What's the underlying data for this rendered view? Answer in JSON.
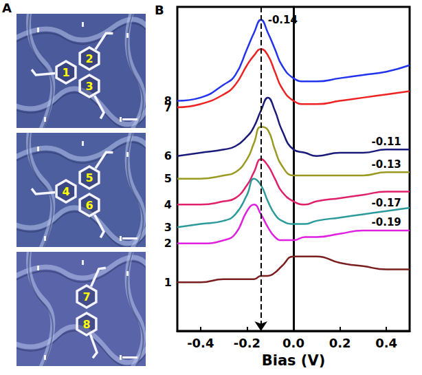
{
  "panel_a": {
    "label": "A",
    "images": [
      {
        "labels": [
          "1",
          "2",
          "3"
        ]
      },
      {
        "labels": [
          "4",
          "5",
          "6"
        ]
      },
      {
        "labels": [
          "7",
          "8"
        ]
      }
    ]
  },
  "chart_data": {
    "type": "line",
    "panel_label": "B",
    "x_label": "Bias (V)",
    "x": [
      -0.5,
      -0.4,
      -0.3,
      -0.25,
      -0.2,
      -0.17,
      -0.14,
      -0.11,
      -0.08,
      -0.05,
      0,
      0.05,
      0.1,
      0.2,
      0.3,
      0.4,
      0.5
    ],
    "series": [
      {
        "name": "8",
        "color": "#2233ee",
        "values": [
          7.1,
          7.2,
          7.6,
          7.9,
          8.7,
          9.2,
          9.6,
          9.2,
          8.7,
          8.2,
          7.8,
          7.7,
          7.7,
          7.8,
          7.9,
          8.0,
          8.2
        ]
      },
      {
        "name": "7",
        "color": "#ee2222",
        "values": [
          6.9,
          7.0,
          7.3,
          7.6,
          8.2,
          8.5,
          8.7,
          8.5,
          8.0,
          7.5,
          7.1,
          7.0,
          7.0,
          7.1,
          7.2,
          7.3,
          7.4
        ]
      },
      {
        "name": "6",
        "color": "#1a1a7a",
        "values": [
          5.4,
          5.5,
          5.6,
          5.7,
          6.0,
          6.3,
          6.8,
          7.2,
          6.8,
          6.2,
          5.6,
          5.5,
          5.4,
          5.5,
          5.5,
          5.6,
          5.6
        ]
      },
      {
        "name": "5",
        "color": "#9a9a20",
        "values": [
          4.7,
          4.7,
          4.8,
          4.9,
          5.3,
          5.8,
          6.3,
          6.2,
          5.6,
          5.1,
          4.8,
          4.8,
          4.8,
          4.8,
          4.8,
          4.9,
          4.9
        ]
      },
      {
        "name": "4",
        "color": "#e0206a",
        "values": [
          3.9,
          3.9,
          4.0,
          4.1,
          4.5,
          4.9,
          5.3,
          5.1,
          4.7,
          4.3,
          4.0,
          3.9,
          4.0,
          4.1,
          4.2,
          4.3,
          4.3
        ]
      },
      {
        "name": "3",
        "color": "#2a9a9a",
        "values": [
          3.2,
          3.3,
          3.4,
          3.6,
          4.2,
          4.7,
          4.5,
          4.0,
          3.6,
          3.4,
          3.3,
          3.3,
          3.4,
          3.5,
          3.6,
          3.7,
          3.8
        ]
      },
      {
        "name": "2",
        "color": "#e020e0",
        "values": [
          2.7,
          2.7,
          2.8,
          3.0,
          3.7,
          3.9,
          3.6,
          3.2,
          2.9,
          2.8,
          2.8,
          2.9,
          2.9,
          3.0,
          3.1,
          3.1,
          3.1
        ]
      },
      {
        "name": "1",
        "color": "#7b1e1e",
        "values": [
          1.5,
          1.5,
          1.6,
          1.6,
          1.6,
          1.6,
          1.7,
          1.7,
          1.8,
          2.0,
          2.3,
          2.3,
          2.3,
          2.1,
          2.0,
          1.9,
          1.9
        ]
      }
    ],
    "xlim": [
      -0.5,
      0.5
    ],
    "xticks": [
      -0.4,
      -0.2,
      {
        "value": 0,
        "label": "0.0"
      },
      0.2,
      0.4
    ],
    "ylim": [
      0,
      10
    ],
    "tick_labels": "x",
    "grid": false,
    "annotations": [
      {
        "text": "-0.14",
        "series": "8",
        "x": -0.14
      },
      {
        "text": "-0.11",
        "series": "6",
        "x": 0.4
      },
      {
        "text": "-0.13",
        "series": "5",
        "x": 0.4
      },
      {
        "text": "-0.17",
        "series": "3",
        "x": 0.4
      },
      {
        "text": "-0.19",
        "series": "2",
        "x": 0.4
      }
    ],
    "reference_line": {
      "x": -0.14,
      "line_style": "dashed"
    }
  }
}
